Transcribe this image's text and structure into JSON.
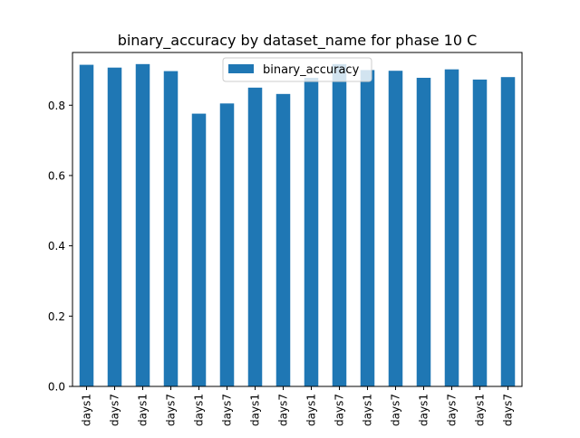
{
  "chart_data": {
    "type": "bar",
    "title": "binary_accuracy by dataset_name for phase 10 C",
    "xlabel": "",
    "ylabel": "",
    "categories": [
      "days1",
      "days7",
      "days1",
      "days7",
      "days1",
      "days7",
      "days1",
      "days7",
      "days1",
      "days7",
      "days1",
      "days7",
      "days1",
      "days7",
      "days1",
      "days7"
    ],
    "series": [
      {
        "name": "binary_accuracy",
        "color": "#1f77b4",
        "values": [
          0.915,
          0.907,
          0.917,
          0.897,
          0.776,
          0.805,
          0.85,
          0.832,
          0.878,
          0.917,
          0.9,
          0.898,
          0.878,
          0.902,
          0.873,
          0.88
        ]
      }
    ],
    "ylim": [
      0,
      0.95
    ],
    "yticks": [
      0.0,
      0.2,
      0.4,
      0.6,
      0.8
    ],
    "ytick_labels": [
      "0.0",
      "0.2",
      "0.4",
      "0.6",
      "0.8"
    ],
    "grid": false,
    "legend_position": "top-center"
  }
}
